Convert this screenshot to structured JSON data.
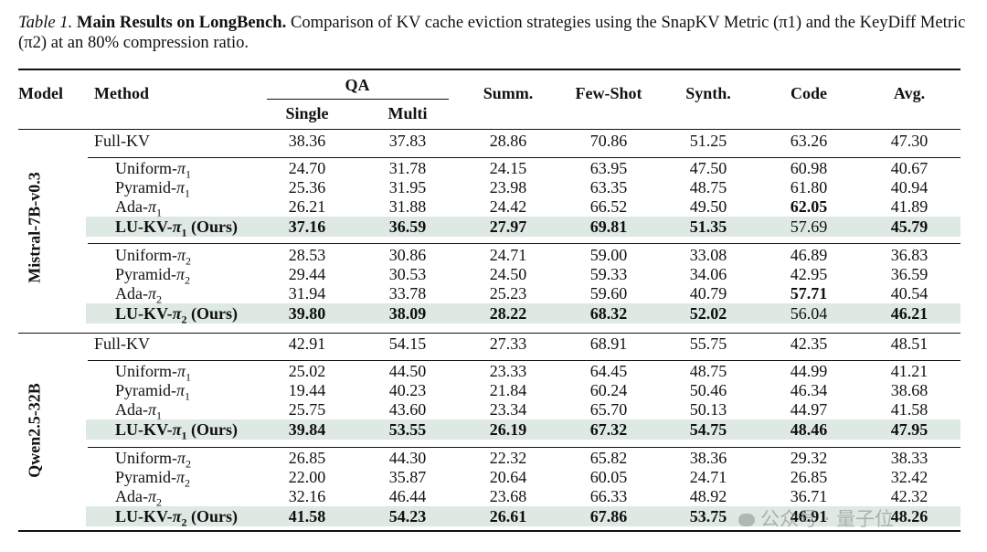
{
  "caption": {
    "label": "Table 1.",
    "title": "Main Results on LongBench.",
    "text": "Comparison of KV cache eviction strategies using the SnapKV Metric (π1) and the KeyDiff Metric (π2) at an 80% compression ratio."
  },
  "header": {
    "model": "Model",
    "method": "Method",
    "qa": "QA",
    "single": "Single",
    "multi": "Multi",
    "summ": "Summ.",
    "fewshot": "Few-Shot",
    "synth": "Synth.",
    "code": "Code",
    "avg": "Avg."
  },
  "models": [
    {
      "name": "Mistral-7B-v0.3",
      "groups": [
        {
          "rows": [
            {
              "method": "Full-KV",
              "vals": [
                "38.36",
                "37.83",
                "28.86",
                "70.86",
                "51.25",
                "63.26",
                "47.30"
              ],
              "bold": [],
              "ours": false
            }
          ]
        },
        {
          "rows": [
            {
              "method": "Uniform-π1",
              "vals": [
                "24.70",
                "31.78",
                "24.15",
                "63.95",
                "47.50",
                "60.98",
                "40.67"
              ],
              "bold": [],
              "ours": false
            },
            {
              "method": "Pyramid-π1",
              "vals": [
                "25.36",
                "31.95",
                "23.98",
                "63.35",
                "48.75",
                "61.80",
                "40.94"
              ],
              "bold": [],
              "ours": false
            },
            {
              "method": "Ada-π1",
              "vals": [
                "26.21",
                "31.88",
                "24.42",
                "66.52",
                "49.50",
                "62.05",
                "41.89"
              ],
              "bold": [
                5
              ],
              "ours": false
            },
            {
              "method": "LU-KV-π1 (Ours)",
              "vals": [
                "37.16",
                "36.59",
                "27.97",
                "69.81",
                "51.35",
                "57.69",
                "45.79"
              ],
              "bold": [
                0,
                1,
                2,
                3,
                4,
                6
              ],
              "ours": true
            }
          ]
        },
        {
          "rows": [
            {
              "method": "Uniform-π2",
              "vals": [
                "28.53",
                "30.86",
                "24.71",
                "59.00",
                "33.08",
                "46.89",
                "36.83"
              ],
              "bold": [],
              "ours": false
            },
            {
              "method": "Pyramid-π2",
              "vals": [
                "29.44",
                "30.53",
                "24.50",
                "59.33",
                "34.06",
                "42.95",
                "36.59"
              ],
              "bold": [],
              "ours": false
            },
            {
              "method": "Ada-π2",
              "vals": [
                "31.94",
                "33.78",
                "25.23",
                "59.60",
                "40.79",
                "57.71",
                "40.54"
              ],
              "bold": [
                5
              ],
              "ours": false
            },
            {
              "method": "LU-KV-π2 (Ours)",
              "vals": [
                "39.80",
                "38.09",
                "28.22",
                "68.32",
                "52.02",
                "56.04",
                "46.21"
              ],
              "bold": [
                0,
                1,
                2,
                3,
                4,
                6
              ],
              "ours": true
            }
          ]
        }
      ]
    },
    {
      "name": "Qwen2.5-32B",
      "groups": [
        {
          "rows": [
            {
              "method": "Full-KV",
              "vals": [
                "42.91",
                "54.15",
                "27.33",
                "68.91",
                "55.75",
                "42.35",
                "48.51"
              ],
              "bold": [],
              "ours": false
            }
          ]
        },
        {
          "rows": [
            {
              "method": "Uniform-π1",
              "vals": [
                "25.02",
                "44.50",
                "23.33",
                "64.45",
                "48.75",
                "44.99",
                "41.21"
              ],
              "bold": [],
              "ours": false
            },
            {
              "method": "Pyramid-π1",
              "vals": [
                "19.44",
                "40.23",
                "21.84",
                "60.24",
                "50.46",
                "46.34",
                "38.68"
              ],
              "bold": [],
              "ours": false
            },
            {
              "method": "Ada-π1",
              "vals": [
                "25.75",
                "43.60",
                "23.34",
                "65.70",
                "50.13",
                "44.97",
                "41.58"
              ],
              "bold": [],
              "ours": false
            },
            {
              "method": "LU-KV-π1 (Ours)",
              "vals": [
                "39.84",
                "53.55",
                "26.19",
                "67.32",
                "54.75",
                "48.46",
                "47.95"
              ],
              "bold": [
                0,
                1,
                2,
                3,
                4,
                5,
                6
              ],
              "ours": true
            }
          ]
        },
        {
          "rows": [
            {
              "method": "Uniform-π2",
              "vals": [
                "26.85",
                "44.30",
                "22.32",
                "65.82",
                "38.36",
                "29.32",
                "38.33"
              ],
              "bold": [],
              "ours": false
            },
            {
              "method": "Pyramid-π2",
              "vals": [
                "22.00",
                "35.87",
                "20.64",
                "60.05",
                "24.71",
                "26.85",
                "32.42"
              ],
              "bold": [],
              "ours": false
            },
            {
              "method": "Ada-π2",
              "vals": [
                "32.16",
                "46.44",
                "23.68",
                "66.33",
                "48.92",
                "36.71",
                "42.32"
              ],
              "bold": [],
              "ours": false
            },
            {
              "method": "LU-KV-π2 (Ours)",
              "vals": [
                "41.58",
                "54.23",
                "26.61",
                "67.86",
                "53.75",
                "46.91",
                "48.26"
              ],
              "bold": [
                0,
                1,
                2,
                3,
                4,
                5,
                6
              ],
              "ours": true
            }
          ]
        }
      ]
    }
  ],
  "watermark": "公众号 · 量子位"
}
